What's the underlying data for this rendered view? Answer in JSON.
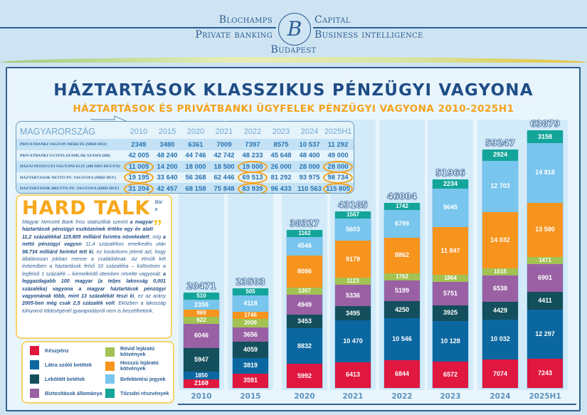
{
  "header": {
    "brand_left": "Blochamps",
    "brand_right": "Capital",
    "tag_left": "Private banking",
    "tag_right": "Business intelligence",
    "city": "Budapest",
    "logo_letter": "B"
  },
  "title": "HÁZTARTÁSOK KLASSZIKUS PÉNZÜGYI VAGYONA",
  "subtitle": "HÁZTARTÁSOK ÉS PRIVÁTBANKI ÜGYFELEK PÉNZÜGYI VAGYONA 2010-2025H1",
  "table": {
    "title": "MAGYARORSZÁG",
    "years": [
      "2010",
      "2015",
      "2020",
      "2021",
      "2022",
      "2023",
      "2024",
      "2025H1"
    ],
    "rows": [
      {
        "label": "PRIVÁTBANKI VAGYON MÉRETE (MRD HUF)",
        "values": [
          "2349",
          "3480",
          "6361",
          "7009",
          "7397",
          "8575",
          "10 537",
          "11 292"
        ]
      },
      {
        "label": "PRIVÁTBANKI ÜGYFÉLSZÁMLÁK SZÁMA (DB)",
        "values": [
          "42 005",
          "48 240",
          "44 746",
          "42 742",
          "48 233",
          "45 648",
          "48 400",
          "49 000"
        ]
      },
      {
        "label": "HAZAI PÉNZÜGYI VAGYONI ELIT (300 MIÓ HUF/FŐ)",
        "values": [
          "11 005",
          "14 200",
          "18 000",
          "18 500",
          "19 000",
          "26 000",
          "28 000",
          "28 000"
        ]
      },
      {
        "label": "HÁZTARTÁSOK NETTÓ PÜ. VAGYONA (MRD HUF)",
        "values": [
          "19 195",
          "33 640",
          "56 368",
          "62 446",
          "69 513",
          "81 292",
          "93 975",
          "98 734"
        ]
      },
      {
        "label": "HÁZTARTÁSOK BRUTTÓ PÜ. VAGYONA (MRD HUF)",
        "values": [
          "31 204",
          "42 457",
          "68 158",
          "75 848",
          "83 939",
          "96 433",
          "110 563",
          "115 805"
        ]
      }
    ],
    "highlight_color": "#f4a21d"
  },
  "hardtalk": {
    "title": "HARD TALK",
    "segments": [
      {
        "t": "Bár a Magyar Nemzeti Bank friss statisztikái szerint ",
        "b": false
      },
      {
        "t": "a magyar háztartások pénzügyi eszközeinek értéke egy év alatt 11,2 százalékkal 115.805 milliárd forintra növekedett",
        "b": true
      },
      {
        "t": ", míg ",
        "b": false
      },
      {
        "t": "a nettó pénzügyi vagyon",
        "b": true
      },
      {
        "t": " 11,4 százalékos emelkedés után ",
        "b": false
      },
      {
        "t": "98.734 milliárd forintot tett ki",
        "b": true
      },
      {
        "t": ", ez korántsem jelenti azt, hogy általánosan jobban menne a családoknak. Az elmúlt két évtizedben a háztartások felső 10 százaléka – különösen a legfelső 1 százalék – kiemelkedő ütemben növelte vagyonát: ",
        "b": false
      },
      {
        "t": "a leggazdagabb 100 magyar (a teljes lakosság 0,001 százaléka) vagyona a magyar háztartások pénzügyi vagyonának több, mint 13 százalékát teszi ki",
        "b": true
      },
      {
        "t": ", ez az arány ",
        "b": false
      },
      {
        "t": "2005-ben még csak 2,5 százalék volt",
        "b": true
      },
      {
        "t": ". Eközben a lakosság túlnyomó többségénél gyarapodásról nem is beszélhetünk.",
        "b": false
      }
    ]
  },
  "chart_data": {
    "type": "bar",
    "stacked": true,
    "categories": [
      "2010",
      "2015",
      "2020",
      "2021",
      "2022",
      "2023",
      "2024",
      "2025H1"
    ],
    "series": [
      {
        "name": "Készpénz",
        "color": "#e0173f",
        "values": [
          2168,
          3591,
          5992,
          6413,
          6844,
          6572,
          7074,
          7243
        ]
      },
      {
        "name": "Látra szóló betétek",
        "color": "#0b67a0",
        "values": [
          1850,
          3819,
          8832,
          10470,
          10546,
          10128,
          10032,
          12297
        ]
      },
      {
        "name": "Lekötött betétek",
        "color": "#134f5c",
        "values": [
          5947,
          4059,
          3453,
          3495,
          4250,
          3925,
          4429,
          4411
        ]
      },
      {
        "name": "Biztosítások állománya",
        "color": "#9a60a4",
        "values": [
          6046,
          3656,
          4949,
          5336,
          5199,
          5751,
          6538,
          6901
        ]
      },
      {
        "name": "Rövid lejáratú kötvények",
        "color": "#a2c253",
        "values": [
          622,
          2009,
          1307,
          1123,
          1762,
          1864,
          1515,
          1471
        ]
      },
      {
        "name": "Hosszú lejáratú kötvények",
        "color": "#f7941d",
        "values": [
          969,
          1746,
          8086,
          9179,
          8862,
          11847,
          14032,
          13580
        ]
      },
      {
        "name": "Befektetési jegyek",
        "color": "#78c5ee",
        "values": [
          2359,
          4118,
          4546,
          5603,
          6799,
          9645,
          12703,
          14818
        ]
      },
      {
        "name": "Tőzsdei részvények",
        "color": "#14a59a",
        "values": [
          510,
          505,
          1162,
          1567,
          1742,
          2234,
          2924,
          3158
        ]
      }
    ],
    "totals": [
      20471,
      23503,
      38327,
      43185,
      46004,
      51966,
      59247,
      63879
    ],
    "legend_position": "bottom-left"
  }
}
